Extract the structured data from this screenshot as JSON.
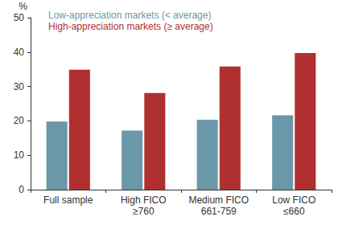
{
  "chart_data": {
    "type": "bar",
    "ylabel": "%",
    "categories": [
      "Full sample",
      "High FICO\n≥760",
      "Medium FICO\n661-759",
      "Low FICO\n≤660"
    ],
    "series": [
      {
        "name": "Low-appreciation markets (< average)",
        "color": "#6b98a8",
        "values": [
          19.8,
          17.2,
          20.3,
          21.6
        ]
      },
      {
        "name": "High-appreciation markets (≥ average)",
        "color": "#b0302f",
        "values": [
          34.9,
          28.1,
          35.8,
          39.7
        ]
      }
    ],
    "ylim": [
      0,
      50
    ],
    "yticks": [
      0,
      10,
      20,
      30,
      40,
      50
    ],
    "grid": false,
    "legend": "upper left",
    "data_labels": false
  }
}
